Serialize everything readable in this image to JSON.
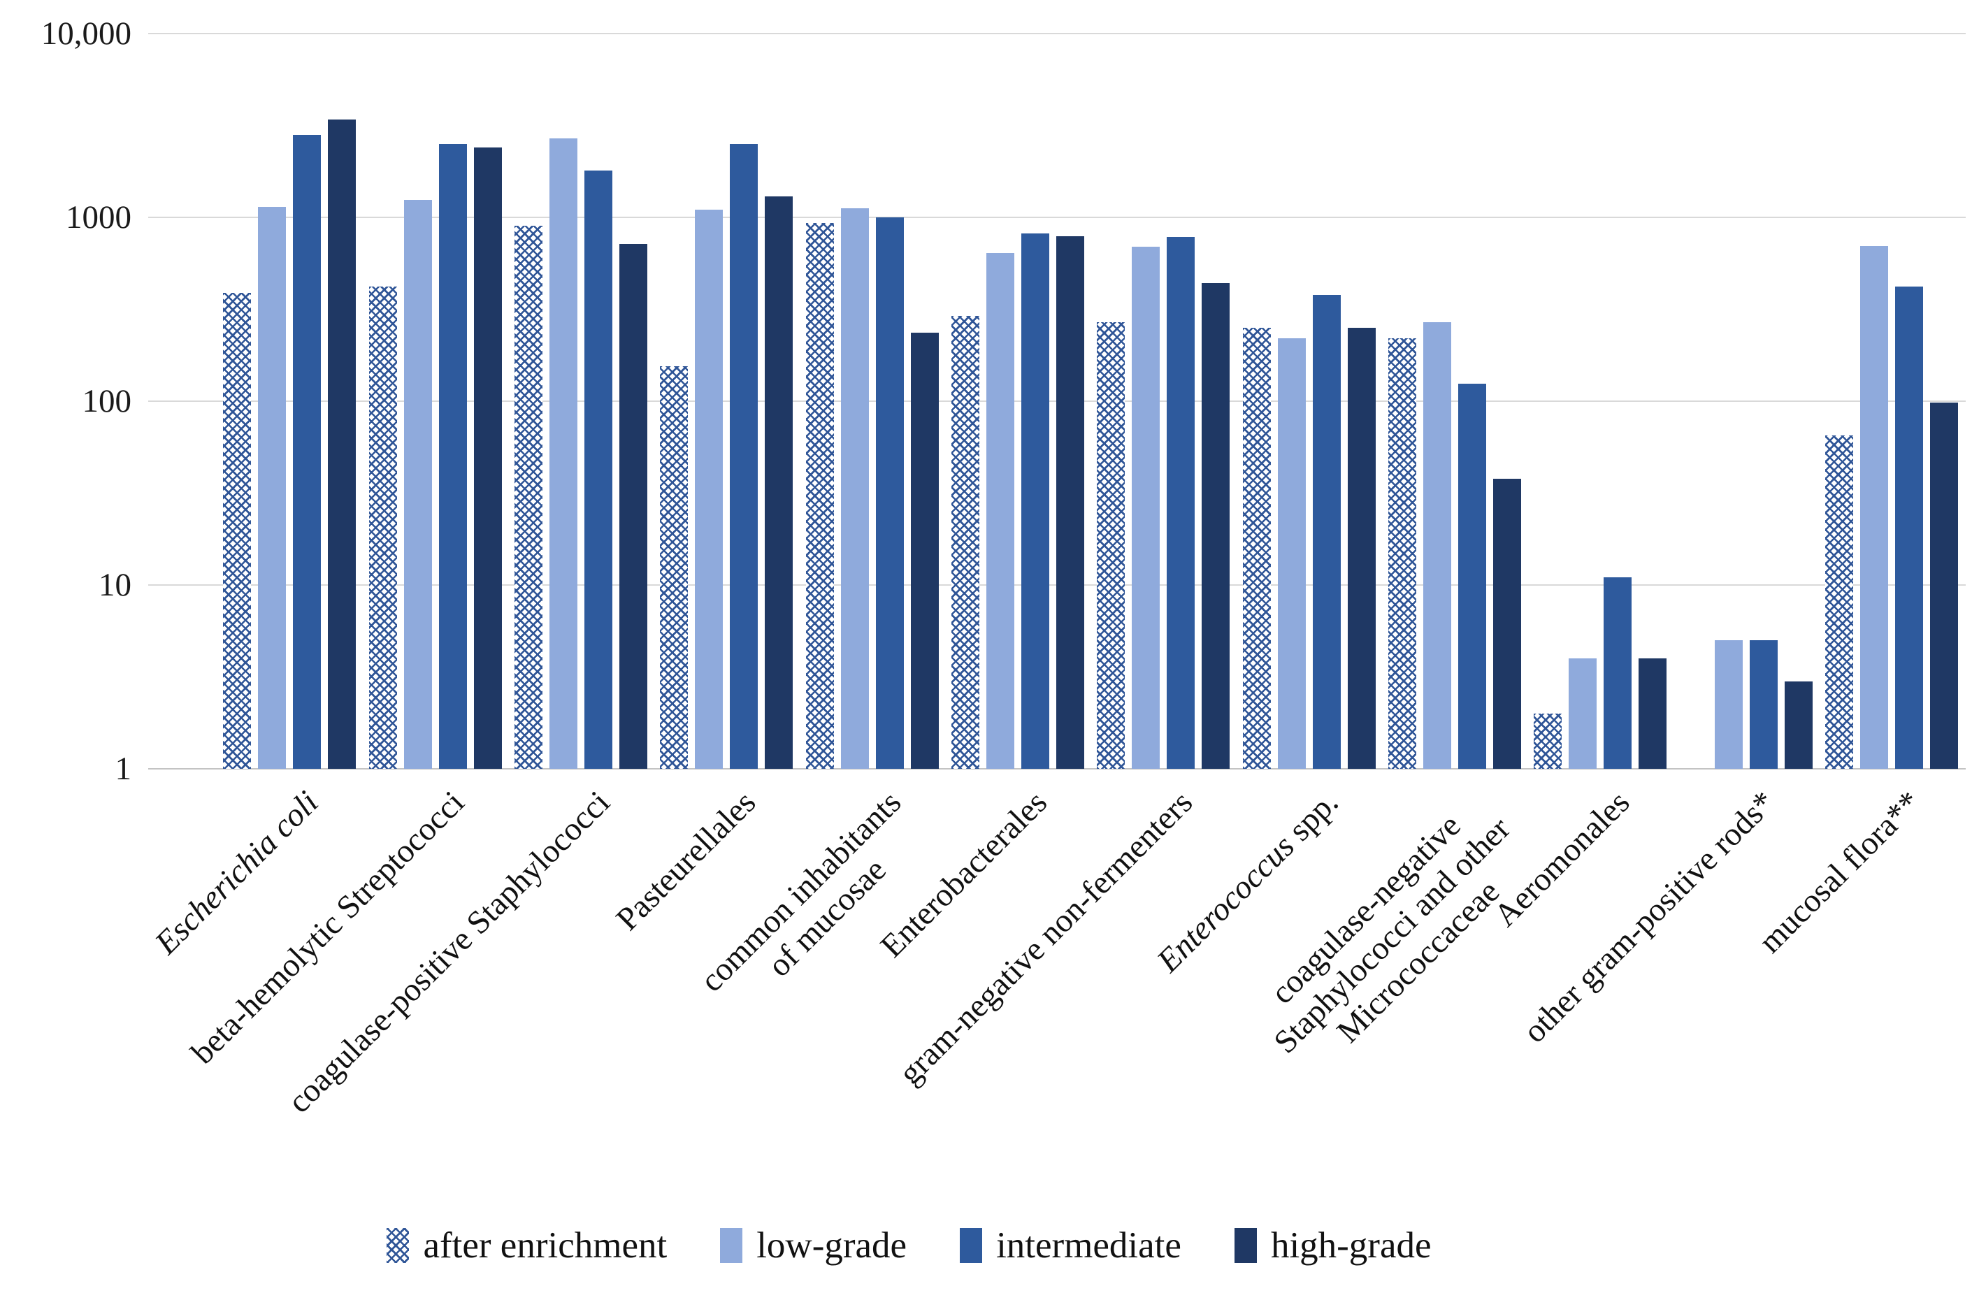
{
  "chart_data": {
    "type": "bar",
    "title": "",
    "y_axis": {
      "scale": "log",
      "min": 1,
      "max": 10000,
      "ticks": [
        {
          "label": "10,000",
          "value": 10000
        },
        {
          "label": "1000",
          "value": 1000
        },
        {
          "label": "100",
          "value": 100
        },
        {
          "label": "10",
          "value": 10
        },
        {
          "label": "1",
          "value": 1
        }
      ]
    },
    "grid": true,
    "legend_position": "bottom",
    "categories": [
      {
        "lines": [
          [
            {
              "t": "Escherichia coli",
              "i": true
            }
          ]
        ]
      },
      {
        "lines": [
          [
            {
              "t": "beta-hemolytic Streptococci",
              "i": false
            }
          ]
        ]
      },
      {
        "lines": [
          [
            {
              "t": "coagulase-positive Staphylococci",
              "i": false
            }
          ]
        ]
      },
      {
        "lines": [
          [
            {
              "t": "Pasteurellales",
              "i": false
            }
          ]
        ]
      },
      {
        "lines": [
          [
            {
              "t": "common inhabitants",
              "i": false
            }
          ],
          [
            {
              "t": "of mucosae",
              "i": false
            }
          ]
        ]
      },
      {
        "lines": [
          [
            {
              "t": "Enterobacterales",
              "i": false
            }
          ]
        ]
      },
      {
        "lines": [
          [
            {
              "t": "gram-negative non-fermenters",
              "i": false
            }
          ]
        ]
      },
      {
        "lines": [
          [
            {
              "t": "Enterococcus",
              "i": true
            },
            {
              "t": " spp.",
              "i": false
            }
          ]
        ]
      },
      {
        "lines": [
          [
            {
              "t": "coagulase-negative",
              "i": false
            }
          ],
          [
            {
              "t": "Staphylococci and other",
              "i": false
            }
          ],
          [
            {
              "t": "Micrococcaceae",
              "i": false
            }
          ]
        ]
      },
      {
        "lines": [
          [
            {
              "t": "Aeromonales",
              "i": false
            }
          ]
        ]
      },
      {
        "lines": [
          [
            {
              "t": "other gram-positive rods*",
              "i": false
            }
          ]
        ]
      },
      {
        "lines": [
          [
            {
              "t": "mucosal flora**",
              "i": false
            }
          ]
        ]
      }
    ],
    "series": [
      {
        "name": "after enrichment",
        "style": "hatched",
        "values": [
          390,
          420,
          900,
          155,
          930,
          290,
          270,
          250,
          220,
          2,
          null,
          65
        ]
      },
      {
        "name": "low-grade",
        "style": "solid",
        "color": "#8FAADC",
        "values": [
          1140,
          1250,
          2700,
          1100,
          1120,
          640,
          690,
          220,
          270,
          4,
          5,
          700
        ]
      },
      {
        "name": "intermediate",
        "style": "solid",
        "color": "#2E5A9D",
        "values": [
          2800,
          2500,
          1800,
          2500,
          1000,
          820,
          780,
          380,
          125,
          11,
          5,
          420
        ]
      },
      {
        "name": "high-grade",
        "style": "solid",
        "color": "#1F3864",
        "values": [
          3400,
          2400,
          720,
          1300,
          235,
          790,
          440,
          250,
          38,
          4,
          3,
          98
        ]
      }
    ],
    "colors": {
      "hatch": "#2F5597",
      "gridline": "#D9D9D9",
      "baseline": "#C3C3C3",
      "text": "#1A1A1A"
    }
  }
}
